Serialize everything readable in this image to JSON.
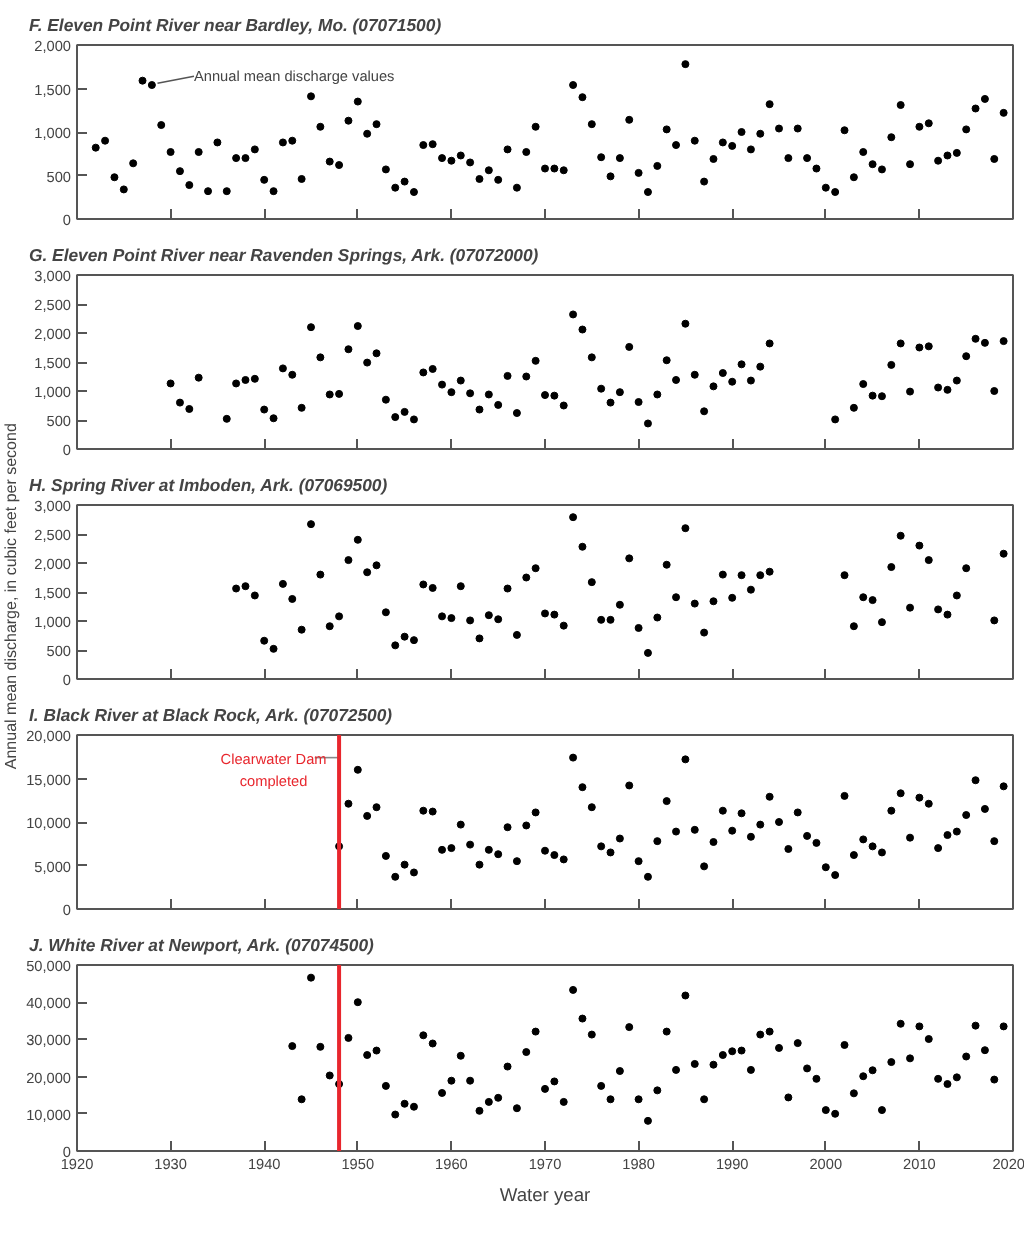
{
  "chart_data": [
    {
      "type": "scatter",
      "title": "F. Eleven Point River near Bardley, Mo. (07071500)",
      "marker": "circle",
      "color": "#000000",
      "grid": false,
      "tick_labels": "y",
      "x": [
        1922,
        1923,
        1924,
        1925,
        1926,
        1927,
        1928,
        1929,
        1930,
        1931,
        1932,
        1933,
        1934,
        1935,
        1936,
        1937,
        1938,
        1939,
        1940,
        1941,
        1942,
        1943,
        1944,
        1945,
        1946,
        1947,
        1948,
        1949,
        1950,
        1951,
        1952,
        1953,
        1954,
        1955,
        1956,
        1957,
        1958,
        1959,
        1960,
        1961,
        1962,
        1963,
        1964,
        1965,
        1966,
        1967,
        1968,
        1969,
        1970,
        1971,
        1972,
        1973,
        1974,
        1975,
        1976,
        1977,
        1978,
        1979,
        1980,
        1981,
        1982,
        1983,
        1984,
        1985,
        1986,
        1987,
        1988,
        1989,
        1990,
        1991,
        1992,
        1993,
        1994,
        1995,
        1996,
        1997,
        1998,
        1999,
        2000,
        2001,
        2002,
        2003,
        2004,
        2005,
        2006,
        2007,
        2008,
        2009,
        2010,
        2011,
        2012,
        2013,
        2014,
        2015,
        2016,
        2017,
        2018,
        2019
      ],
      "values": [
        820,
        900,
        480,
        340,
        640,
        1590,
        1540,
        1080,
        770,
        550,
        390,
        770,
        320,
        880,
        320,
        700,
        700,
        800,
        450,
        320,
        880,
        900,
        460,
        1410,
        1060,
        660,
        620,
        1130,
        1350,
        980,
        1090,
        570,
        360,
        430,
        310,
        850,
        860,
        700,
        670,
        730,
        650,
        460,
        560,
        450,
        800,
        360,
        770,
        1060,
        580,
        580,
        560,
        1540,
        1400,
        1090,
        710,
        490,
        700,
        1140,
        530,
        310,
        610,
        1030,
        850,
        1780,
        900,
        430,
        690,
        880,
        840,
        1000,
        800,
        980,
        1320,
        1040,
        700,
        1040,
        700,
        580,
        360,
        310,
        1020,
        480,
        770,
        630,
        570,
        940,
        1310,
        630,
        1060,
        1100,
        670,
        730,
        760,
        1030,
        1270,
        1380,
        690,
        1220
      ],
      "xlim": [
        1920,
        2020
      ],
      "xticks": [
        1920,
        1930,
        1940,
        1950,
        1960,
        1970,
        1980,
        1990,
        2000,
        2010,
        2020
      ],
      "ylim": [
        0,
        2000
      ],
      "yticks": [
        0,
        {
          "value": 500,
          "label": "500"
        },
        {
          "value": 1000,
          "label": "1,000"
        },
        {
          "value": 1500,
          "label": "1,500"
        },
        {
          "value": 2000,
          "label": "2,000"
        }
      ],
      "annotations": [
        {
          "text": "Annual mean discharge values",
          "x": 1928,
          "y": 1540
        }
      ]
    },
    {
      "type": "scatter",
      "title": "G. Eleven Point River near Ravenden Springs, Ark. (07072000)",
      "marker": "circle",
      "color": "#000000",
      "grid": false,
      "tick_labels": "y",
      "x": [
        1930,
        1931,
        1932,
        1933,
        1936,
        1937,
        1938,
        1939,
        1940,
        1941,
        1942,
        1943,
        1944,
        1945,
        1946,
        1947,
        1948,
        1949,
        1950,
        1951,
        1952,
        1953,
        1954,
        1955,
        1956,
        1957,
        1958,
        1959,
        1960,
        1961,
        1962,
        1963,
        1964,
        1965,
        1966,
        1967,
        1968,
        1969,
        1970,
        1971,
        1972,
        1973,
        1974,
        1975,
        1976,
        1977,
        1978,
        1979,
        1980,
        1981,
        1982,
        1983,
        1984,
        1985,
        1986,
        1987,
        1988,
        1989,
        1990,
        1991,
        1992,
        1993,
        1994,
        2001,
        2003,
        2004,
        2005,
        2006,
        2007,
        2008,
        2009,
        2010,
        2011,
        2012,
        2013,
        2014,
        2015,
        2016,
        2017,
        2018,
        2019
      ],
      "values": [
        1130,
        800,
        690,
        1230,
        520,
        1130,
        1190,
        1210,
        680,
        530,
        1390,
        1280,
        710,
        2100,
        1580,
        940,
        950,
        1720,
        2120,
        1490,
        1650,
        850,
        550,
        640,
        510,
        1320,
        1380,
        1110,
        980,
        1180,
        960,
        680,
        940,
        760,
        1260,
        620,
        1250,
        1520,
        930,
        920,
        750,
        2320,
        2060,
        1580,
        1040,
        800,
        980,
        1760,
        810,
        440,
        940,
        1530,
        1190,
        2160,
        1280,
        650,
        1080,
        1310,
        1160,
        1460,
        1180,
        1420,
        1820,
        510,
        710,
        1120,
        920,
        910,
        1450,
        1820,
        990,
        1750,
        1770,
        1060,
        1020,
        1180,
        1600,
        1900,
        1830,
        1000,
        1860
      ],
      "xlim": [
        1920,
        2020
      ],
      "xticks": [
        1920,
        1930,
        1940,
        1950,
        1960,
        1970,
        1980,
        1990,
        2000,
        2010,
        2020
      ],
      "ylim": [
        0,
        3000
      ],
      "yticks": [
        0,
        {
          "value": 500,
          "label": "500"
        },
        {
          "value": 1000,
          "label": "1,000"
        },
        {
          "value": 1500,
          "label": "1,500"
        },
        {
          "value": 2000,
          "label": "2,000"
        },
        {
          "value": 2500,
          "label": "2,500"
        },
        {
          "value": 3000,
          "label": "3,000"
        }
      ]
    },
    {
      "type": "scatter",
      "title": "H. Spring River at Imboden, Ark. (07069500)",
      "ylabel": "Annual mean discharge, in cubic feet per second",
      "marker": "circle",
      "color": "#000000",
      "grid": false,
      "tick_labels": "y",
      "x": [
        1937,
        1938,
        1939,
        1940,
        1941,
        1942,
        1943,
        1944,
        1945,
        1946,
        1947,
        1948,
        1949,
        1950,
        1951,
        1952,
        1953,
        1954,
        1955,
        1956,
        1957,
        1958,
        1959,
        1960,
        1961,
        1962,
        1963,
        1964,
        1965,
        1966,
        1967,
        1968,
        1969,
        1970,
        1971,
        1972,
        1973,
        1974,
        1975,
        1976,
        1977,
        1978,
        1979,
        1980,
        1981,
        1982,
        1983,
        1984,
        1985,
        1986,
        1987,
        1988,
        1989,
        1990,
        1991,
        1992,
        1993,
        1994,
        2002,
        2003,
        2004,
        2005,
        2006,
        2007,
        2008,
        2009,
        2010,
        2011,
        2012,
        2013,
        2014,
        2015,
        2018,
        2019
      ],
      "values": [
        1560,
        1600,
        1440,
        660,
        520,
        1640,
        1380,
        850,
        2670,
        1800,
        910,
        1080,
        2050,
        2400,
        1840,
        1960,
        1150,
        580,
        730,
        670,
        1630,
        1570,
        1080,
        1050,
        1600,
        1010,
        700,
        1100,
        1030,
        1560,
        760,
        1750,
        1910,
        1130,
        1110,
        920,
        2790,
        2280,
        1670,
        1020,
        1020,
        1280,
        2080,
        880,
        450,
        1060,
        1970,
        1410,
        2600,
        1300,
        800,
        1340,
        1800,
        1400,
        1790,
        1540,
        1790,
        1850,
        1790,
        910,
        1410,
        1360,
        980,
        1930,
        2470,
        1230,
        2300,
        2050,
        1200,
        1110,
        1440,
        1910,
        1010,
        2160
      ],
      "xlim": [
        1920,
        2020
      ],
      "xticks": [
        1920,
        1930,
        1940,
        1950,
        1960,
        1970,
        1980,
        1990,
        2000,
        2010,
        2020
      ],
      "ylim": [
        0,
        3000
      ],
      "yticks": [
        0,
        {
          "value": 500,
          "label": "500"
        },
        {
          "value": 1000,
          "label": "1,000"
        },
        {
          "value": 1500,
          "label": "1,500"
        },
        {
          "value": 2000,
          "label": "2,000"
        },
        {
          "value": 2500,
          "label": "2,500"
        },
        {
          "value": 3000,
          "label": "3,000"
        }
      ]
    },
    {
      "type": "scatter",
      "title": "I. Black River at Black Rock, Ark. (07072500)",
      "marker": "circle",
      "color": "#000000",
      "grid": false,
      "tick_labels": "y",
      "x": [
        1948,
        1949,
        1950,
        1951,
        1952,
        1953,
        1954,
        1955,
        1956,
        1957,
        1958,
        1959,
        1960,
        1961,
        1962,
        1963,
        1964,
        1965,
        1966,
        1967,
        1968,
        1969,
        1970,
        1971,
        1972,
        1973,
        1974,
        1975,
        1976,
        1977,
        1978,
        1979,
        1980,
        1981,
        1982,
        1983,
        1984,
        1985,
        1986,
        1987,
        1988,
        1989,
        1990,
        1991,
        1992,
        1993,
        1994,
        1995,
        1996,
        1997,
        1998,
        1999,
        2000,
        2001,
        2002,
        2003,
        2004,
        2005,
        2006,
        2007,
        2008,
        2009,
        2010,
        2011,
        2012,
        2013,
        2014,
        2015,
        2016,
        2017,
        2018,
        2019
      ],
      "values": [
        7200,
        12100,
        16000,
        10700,
        11700,
        6100,
        3700,
        5100,
        4200,
        11300,
        11200,
        6800,
        7000,
        9700,
        7400,
        5100,
        6800,
        6300,
        9400,
        5500,
        9600,
        11100,
        6700,
        6200,
        5700,
        17400,
        14000,
        11700,
        7200,
        6500,
        8100,
        14200,
        5500,
        3700,
        7800,
        12400,
        8900,
        17200,
        9100,
        4900,
        7700,
        11300,
        9000,
        11000,
        8300,
        9700,
        12900,
        10000,
        6900,
        11100,
        8400,
        7600,
        4800,
        3900,
        13000,
        6200,
        8000,
        7200,
        6500,
        11300,
        13300,
        8200,
        12800,
        12100,
        7000,
        8500,
        8900,
        10800,
        14800,
        11500,
        7800,
        14100
      ],
      "xlim": [
        1920,
        2020
      ],
      "xticks": [
        1920,
        1930,
        1940,
        1950,
        1960,
        1970,
        1980,
        1990,
        2000,
        2010,
        2020
      ],
      "ylim": [
        0,
        20000
      ],
      "yticks": [
        0,
        {
          "value": 5000,
          "label": "5,000"
        },
        {
          "value": 10000,
          "label": "10,000"
        },
        {
          "value": 15000,
          "label": "15,000"
        },
        {
          "value": 20000,
          "label": "20,000"
        }
      ],
      "ref_lines": [
        {
          "axis": "x",
          "value": 1948,
          "label": "Clearwater Dam completed",
          "color": "#e8262d"
        }
      ]
    },
    {
      "type": "scatter",
      "title": "J. White River at Newport, Ark. (07074500)",
      "xlabel": "Water year",
      "marker": "circle",
      "color": "#000000",
      "grid": false,
      "x": [
        1943,
        1944,
        1945,
        1946,
        1947,
        1948,
        1949,
        1950,
        1951,
        1952,
        1953,
        1954,
        1955,
        1956,
        1957,
        1958,
        1959,
        1960,
        1961,
        1962,
        1963,
        1964,
        1965,
        1966,
        1967,
        1968,
        1969,
        1970,
        1971,
        1972,
        1973,
        1974,
        1975,
        1976,
        1977,
        1978,
        1979,
        1980,
        1981,
        1982,
        1983,
        1984,
        1985,
        1986,
        1987,
        1988,
        1989,
        1990,
        1991,
        1992,
        1993,
        1994,
        1995,
        1996,
        1997,
        1998,
        1999,
        2000,
        2001,
        2002,
        2003,
        2004,
        2005,
        2006,
        2007,
        2008,
        2009,
        2010,
        2011,
        2012,
        2013,
        2014,
        2015,
        2016,
        2017,
        2018,
        2019
      ],
      "values": [
        28200,
        13900,
        46600,
        28000,
        20300,
        18000,
        30400,
        40000,
        25800,
        27000,
        17500,
        9800,
        12700,
        11900,
        31100,
        28900,
        15600,
        18900,
        25600,
        18900,
        10800,
        13200,
        14300,
        22700,
        11500,
        26600,
        32100,
        16700,
        18700,
        13200,
        43300,
        35600,
        31300,
        17500,
        13900,
        21500,
        33300,
        13900,
        8100,
        16300,
        32100,
        21800,
        41800,
        23400,
        13900,
        23200,
        25800,
        26800,
        27000,
        21800,
        31300,
        32100,
        27700,
        14400,
        29000,
        22200,
        19400,
        11000,
        10000,
        28500,
        15500,
        20100,
        21700,
        11000,
        23900,
        34200,
        24900,
        33500,
        30100,
        19400,
        18000,
        19800,
        25400,
        33700,
        27100,
        19200,
        33500
      ],
      "xlim": [
        1920,
        2020
      ],
      "xticks": [
        1920,
        1930,
        1940,
        1950,
        1960,
        1970,
        1980,
        1990,
        2000,
        2010,
        2020
      ],
      "ylim": [
        0,
        50000
      ],
      "yticks": [
        0,
        {
          "value": 10000,
          "label": "10,000"
        },
        {
          "value": 20000,
          "label": "20,000"
        },
        {
          "value": 30000,
          "label": "30,000"
        },
        {
          "value": 40000,
          "label": "40,000"
        },
        {
          "value": 50000,
          "label": "50,000"
        }
      ],
      "ref_lines": [
        {
          "axis": "x",
          "value": 1948,
          "label": null,
          "color": "#e8262d"
        }
      ]
    }
  ]
}
